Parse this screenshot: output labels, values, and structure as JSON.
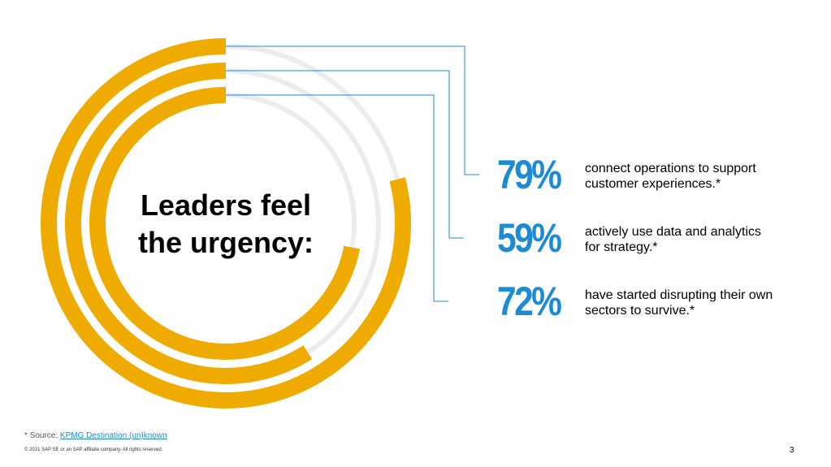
{
  "chart_data": {
    "type": "radialbar",
    "title": "Leaders feel the urgency:",
    "categories": [
      "connect operations to support customer experiences.*",
      "actively use data and analytics for strategy.*",
      "have started disrupting their own sectors to survive.*"
    ],
    "values": [
      79,
      59,
      72
    ],
    "value_labels": [
      "79%",
      "59%",
      "72%"
    ],
    "color": "#f0ab00",
    "track_color": "#ececec",
    "label_color": "#1b8bd3"
  },
  "footer": {
    "source_prefix": "* Source:",
    "source_link": "KPMG Destination (un)known",
    "copyright": "© 2021 SAP SE or an SAP affiliate company. All rights reserved.",
    "page": "3"
  }
}
